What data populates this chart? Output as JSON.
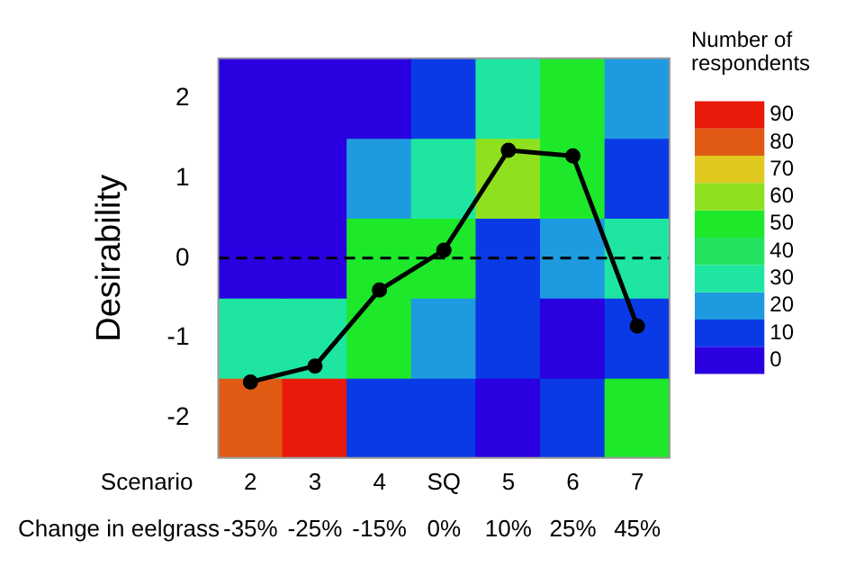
{
  "chart_data": {
    "type": "heatmap",
    "ylabel": "Desirability",
    "xlabel": "Scenario",
    "clabel": "Number of respondents",
    "categories": [
      "2",
      "3",
      "4",
      "SQ",
      "5",
      "6",
      "7"
    ],
    "ylim": [
      -2.5,
      2.5
    ],
    "yticks": [
      -2,
      -1,
      0,
      1,
      2
    ],
    "cells": [
      [
        0,
        0,
        0,
        10,
        30,
        50,
        20
      ],
      [
        0,
        0,
        20,
        30,
        60,
        50,
        10
      ],
      [
        0,
        0,
        50,
        50,
        10,
        20,
        30
      ],
      [
        30,
        30,
        50,
        20,
        10,
        0,
        10
      ],
      [
        80,
        90,
        10,
        10,
        0,
        10,
        50
      ]
    ],
    "clim": [
      -5,
      95
    ],
    "cticks": [
      0,
      10,
      20,
      30,
      40,
      50,
      60,
      70,
      80,
      90
    ],
    "series": [
      {
        "type": "line",
        "color": "#000000",
        "values": [
          -1.55,
          -1.35,
          -0.4,
          0.1,
          1.35,
          1.28,
          -0.85
        ]
      }
    ],
    "marker": "circle",
    "ref_lines": [
      {
        "axis": "y",
        "value": 0,
        "color": "#000000",
        "line_style": "dashed"
      }
    ],
    "annotations": [
      "Change in eelgrass",
      "-35%",
      "-25%",
      "-15%",
      "0%",
      "10%",
      "25%",
      "45%"
    ],
    "grid": false,
    "legend": false
  }
}
